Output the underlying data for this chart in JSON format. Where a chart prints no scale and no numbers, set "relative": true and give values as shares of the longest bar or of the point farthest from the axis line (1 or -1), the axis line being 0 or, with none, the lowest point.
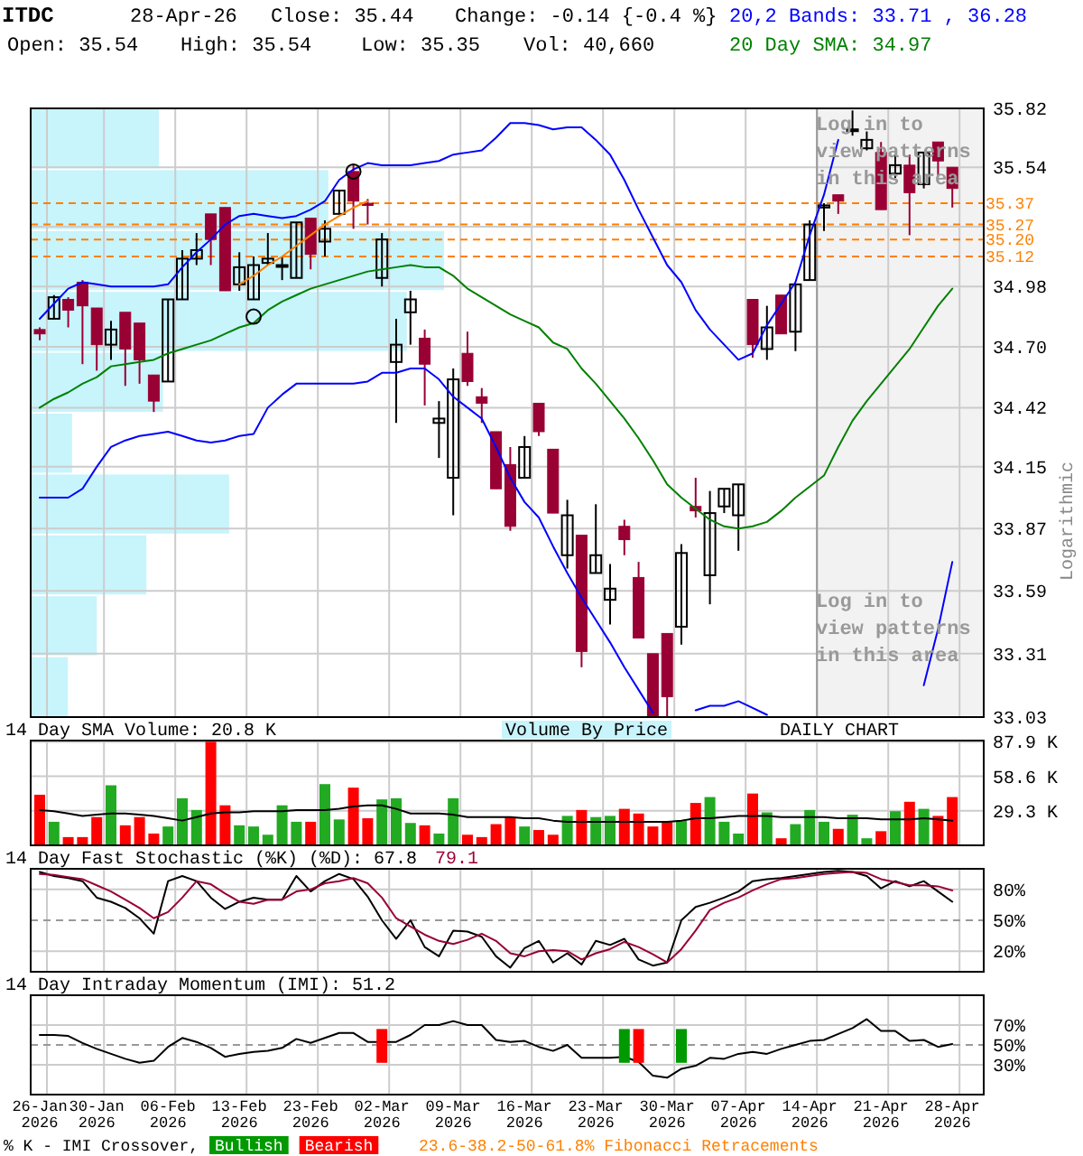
{
  "chart_data": [
    {
      "type": "candlestick",
      "title": "ITDC",
      "ylabel": "Logarithmic",
      "log": true,
      "grid": true,
      "tick_labels": "y",
      "annotations": [
        "28-Apr-26",
        "Close: 35.44",
        "Change: -0.14 {-0.4 %}",
        "Open: 35.54",
        "High: 35.54",
        "Low: 35.35",
        "Vol: 40,660",
        "20,2 Bands: 33.71 , 36.28",
        "20 Day SMA: 34.97",
        "Log in to view patterns in this area",
        "Log in to view patterns in this area",
        "DAILY CHART",
        "Volume By Price"
      ],
      "categories": [
        null,
        null,
        null,
        null,
        null,
        null,
        null,
        null,
        null,
        null,
        null,
        null,
        null,
        null,
        null,
        null,
        null,
        null,
        null,
        null,
        null,
        null,
        null,
        null,
        null,
        null,
        null,
        null,
        null,
        null,
        null,
        null,
        null,
        null,
        null,
        null,
        null,
        null,
        null,
        null,
        null,
        null,
        null,
        null,
        null,
        null,
        null,
        null,
        null,
        null,
        null,
        null,
        null,
        null,
        null,
        null,
        null,
        null,
        null,
        null,
        null,
        null,
        null,
        null,
        null
      ],
      "ylim": [
        33.03,
        35.82
      ],
      "yticks": [
        33.03,
        33.31,
        33.59,
        33.87,
        34.15,
        34.42,
        {
          "value": 34.7,
          "label": "34.70"
        },
        34.98,
        {
          "value": 35.26,
          "label": null
        },
        35.54,
        35.82
      ],
      "ref_lines": [
        {
          "axis": "y",
          "value": 35.37,
          "label": "35.37",
          "color": "#ff8000",
          "line_style": "dashed"
        },
        {
          "axis": "y",
          "value": 35.27,
          "label": "35.27",
          "color": "#ff8000",
          "line_style": "dashed"
        },
        {
          "axis": "y",
          "value": 35.2,
          "label": "35.20",
          "color": "#ff8000",
          "line_style": "dashed"
        },
        {
          "axis": "y",
          "value": 35.12,
          "label": "35.12",
          "color": "#ff8000",
          "line_style": "dashed"
        }
      ],
      "series": [
        {
          "type": "candlestick",
          "colors": [
            "#990033",
            "#000000",
            "#990033",
            "#990033",
            "#990033",
            "#000000",
            "#990033",
            "#990033",
            "#990033",
            "#000000",
            "#000000",
            "#000000",
            "#990033",
            "#990033",
            "#000000",
            "#000000",
            "#000000",
            "#000000",
            "#000000",
            "#990033",
            "#000000",
            "#000000",
            "#990033",
            "#990033",
            "#000000",
            "#000000",
            "#000000",
            "#990033",
            "#000000",
            "#000000",
            "#990033",
            "#990033",
            "#990033",
            "#990033",
            "#000000",
            "#990033",
            "#990033",
            "#000000",
            "#990033",
            "#000000",
            "#000000",
            "#990033",
            "#990033",
            "#990033",
            "#990033",
            "#000000",
            "#990033",
            "#000000",
            "#000000",
            "#000000",
            "#990033",
            "#000000",
            "#990033",
            "#000000",
            "#000000",
            "#000000",
            "#990033",
            "#000000",
            "#000000",
            "#990033",
            "#000000",
            "#990033",
            "#000000",
            "#990033",
            "#990033"
          ],
          "ohlc": [
            [
              34.78,
              34.79,
              34.73,
              34.76
            ],
            [
              34.83,
              34.94,
              34.83,
              34.93
            ],
            [
              34.92,
              34.93,
              34.79,
              34.87
            ],
            [
              35.0,
              35.01,
              34.62,
              34.89
            ],
            [
              34.88,
              34.88,
              34.59,
              34.71
            ],
            [
              34.71,
              34.82,
              34.64,
              34.78
            ],
            [
              34.86,
              34.86,
              34.52,
              34.69
            ],
            [
              34.81,
              34.81,
              34.53,
              34.64
            ],
            [
              34.57,
              34.57,
              34.4,
              34.45
            ],
            [
              34.54,
              34.92,
              34.54,
              34.92
            ],
            [
              34.92,
              35.15,
              34.92,
              35.11
            ],
            [
              35.11,
              35.23,
              35.08,
              35.15
            ],
            [
              35.32,
              35.32,
              35.08,
              35.2
            ],
            [
              35.35,
              35.35,
              34.96,
              34.96
            ],
            [
              34.99,
              35.14,
              34.96,
              35.07
            ],
            [
              34.92,
              35.12,
              34.92,
              35.08
            ],
            [
              35.09,
              35.23,
              35.08,
              35.11
            ],
            [
              35.08,
              35.12,
              35.01,
              35.08
            ],
            [
              35.02,
              35.28,
              35.02,
              35.28
            ],
            [
              35.3,
              35.3,
              35.06,
              35.13
            ],
            [
              35.19,
              35.29,
              35.12,
              35.25
            ],
            [
              35.32,
              35.43,
              35.32,
              35.43
            ],
            [
              35.52,
              35.55,
              35.25,
              35.38
            ],
            [
              35.37,
              35.39,
              35.27,
              35.36
            ],
            [
              35.02,
              35.23,
              34.98,
              35.2
            ],
            [
              34.63,
              34.83,
              34.35,
              34.71
            ],
            [
              34.86,
              34.96,
              34.71,
              34.92
            ],
            [
              34.74,
              34.78,
              34.43,
              34.62
            ],
            [
              34.35,
              34.45,
              34.19,
              34.37
            ],
            [
              34.1,
              34.6,
              33.93,
              34.55
            ],
            [
              34.67,
              34.77,
              34.52,
              34.54
            ],
            [
              34.47,
              34.51,
              34.35,
              34.44
            ],
            [
              34.31,
              34.31,
              34.05,
              34.05
            ],
            [
              34.16,
              34.24,
              33.86,
              33.88
            ],
            [
              34.1,
              34.29,
              34.1,
              34.24
            ],
            [
              34.44,
              34.44,
              34.29,
              34.31
            ],
            [
              34.23,
              34.23,
              33.94,
              33.94
            ],
            [
              33.75,
              34.0,
              33.69,
              33.93
            ],
            [
              33.84,
              33.84,
              33.25,
              33.32
            ],
            [
              33.67,
              33.98,
              33.67,
              33.75
            ],
            [
              33.55,
              33.71,
              33.44,
              33.6
            ],
            [
              33.88,
              33.91,
              33.75,
              33.82
            ],
            [
              33.65,
              33.72,
              33.38,
              33.38
            ],
            [
              33.31,
              33.31,
              33.03,
              33.03
            ],
            [
              33.4,
              33.4,
              33.03,
              33.12
            ],
            [
              33.43,
              33.8,
              33.35,
              33.76
            ],
            [
              33.97,
              34.1,
              33.92,
              33.95
            ],
            [
              33.66,
              34.04,
              33.53,
              33.94
            ],
            [
              33.97,
              34.05,
              33.94,
              34.05
            ],
            [
              33.93,
              34.07,
              33.77,
              34.07
            ],
            [
              34.92,
              34.92,
              34.65,
              34.71
            ],
            [
              34.69,
              34.89,
              34.64,
              34.79
            ],
            [
              34.94,
              34.94,
              34.76,
              34.76
            ],
            [
              34.77,
              34.99,
              34.68,
              34.99
            ],
            [
              35.01,
              35.29,
              35.01,
              35.27
            ],
            [
              35.35,
              35.37,
              35.24,
              35.36
            ],
            [
              35.41,
              35.41,
              35.32,
              35.38
            ],
            [
              35.72,
              35.81,
              35.69,
              35.72
            ],
            [
              35.63,
              35.71,
              35.62,
              35.67
            ],
            [
              35.61,
              35.66,
              35.34,
              35.34
            ],
            [
              35.51,
              35.6,
              35.49,
              35.55
            ],
            [
              35.55,
              35.6,
              35.22,
              35.42
            ],
            [
              35.46,
              35.61,
              35.44,
              35.61
            ],
            [
              35.66,
              35.66,
              35.5,
              35.57
            ],
            [
              35.54,
              35.54,
              35.35,
              35.44
            ]
          ]
        },
        {
          "type": "line",
          "color": "#0000ff",
          "values": [
            34.83,
            34.9,
            34.97,
            35.0,
            34.99,
            34.98,
            34.98,
            34.98,
            34.98,
            34.99,
            35.07,
            35.14,
            35.2,
            35.27,
            35.31,
            35.32,
            35.31,
            35.3,
            35.31,
            35.34,
            35.38,
            35.48,
            35.53,
            35.56,
            35.55,
            35.55,
            35.55,
            35.56,
            35.57,
            35.6,
            35.61,
            35.62,
            35.68,
            35.75,
            35.75,
            35.74,
            35.72,
            35.73,
            35.73,
            35.67,
            35.6,
            35.48,
            35.34,
            35.21,
            35.08,
            35.0,
            34.87,
            34.78,
            34.71,
            34.64,
            34.67,
            34.8,
            34.9,
            35.0,
            35.22,
            35.41,
            35.67,
            null,
            null,
            null,
            null,
            null,
            null,
            null,
            null
          ]
        },
        {
          "type": "line",
          "color": "#0000ff",
          "values": [
            34.01,
            34.01,
            34.01,
            34.05,
            34.15,
            34.24,
            34.27,
            34.29,
            34.3,
            34.31,
            34.29,
            34.27,
            34.26,
            34.27,
            34.29,
            34.3,
            34.42,
            34.48,
            34.53,
            34.53,
            34.53,
            34.53,
            34.53,
            34.54,
            34.58,
            34.58,
            34.6,
            34.6,
            34.55,
            34.47,
            34.42,
            34.37,
            34.24,
            34.1,
            33.99,
            33.92,
            33.79,
            33.67,
            33.56,
            33.46,
            33.36,
            33.25,
            33.15,
            33.05,
            null,
            null,
            33.06,
            33.08,
            33.08,
            33.1,
            33.07,
            33.04,
            null,
            null,
            null,
            null,
            null,
            null,
            null,
            null,
            null,
            null,
            33.17,
            33.42,
            33.72
          ]
        },
        {
          "type": "line",
          "color": "#008000",
          "values": [
            34.42,
            34.46,
            34.49,
            34.53,
            34.56,
            34.61,
            34.62,
            34.63,
            34.64,
            34.67,
            34.69,
            34.71,
            34.73,
            34.76,
            34.79,
            34.81,
            34.87,
            34.91,
            34.94,
            34.97,
            34.99,
            35.01,
            35.03,
            35.05,
            35.06,
            35.07,
            35.08,
            35.07,
            35.07,
            35.03,
            34.97,
            34.93,
            34.89,
            34.85,
            34.82,
            34.79,
            34.72,
            34.69,
            34.6,
            34.53,
            34.45,
            34.37,
            34.28,
            34.18,
            34.07,
            34.01,
            33.96,
            33.91,
            33.88,
            33.87,
            33.88,
            33.9,
            33.95,
            34.01,
            34.06,
            34.11,
            34.24,
            34.36,
            34.45,
            34.53,
            34.61,
            34.69,
            34.79,
            34.89,
            34.97
          ]
        },
        {
          "type": "scatter",
          "marker": "circle",
          "color": "#000000",
          "values": [
            null,
            null,
            null,
            null,
            null,
            null,
            null,
            null,
            null,
            null,
            null,
            null,
            null,
            null,
            null,
            34.84,
            null,
            null,
            null,
            null,
            null,
            null,
            35.52,
            null,
            null,
            null,
            null,
            null,
            null,
            null,
            null,
            null,
            null,
            null,
            null,
            null,
            null,
            null,
            null,
            null,
            null,
            null,
            null,
            null,
            null,
            null,
            null,
            null,
            null,
            null,
            null,
            null,
            null,
            null,
            null,
            null,
            null,
            null,
            null,
            null,
            null,
            null,
            null,
            null,
            null
          ]
        },
        {
          "type": "line",
          "color": "#ff8000",
          "values": [
            null,
            null,
            null,
            null,
            null,
            null,
            null,
            null,
            null,
            null,
            null,
            null,
            null,
            null,
            34.99,
            35.03,
            35.08,
            35.12,
            35.17,
            35.22,
            35.27,
            35.31,
            35.35,
            35.38,
            null,
            null,
            null,
            null,
            null,
            null,
            null,
            null,
            null,
            null,
            null,
            null,
            null,
            null,
            null,
            null,
            null,
            null,
            null,
            null,
            null,
            null,
            null,
            null,
            null,
            null,
            null,
            null,
            null,
            null,
            null,
            null,
            null,
            null,
            null,
            null,
            null,
            null,
            null,
            null,
            null
          ]
        }
      ]
    },
    {
      "type": "bar",
      "orientation": "horizontal",
      "relative": true,
      "color": "#c8f4fc",
      "categories": [
        null,
        null,
        null,
        null,
        null,
        null,
        null,
        null,
        null,
        null
      ],
      "values": [
        0.31,
        0.72,
        1,
        0.91,
        0.32,
        0.1,
        0.48,
        0.28,
        0.16,
        0.09
      ]
    },
    {
      "type": "bar",
      "title": "14 Day SMA Volume: 20.8 K",
      "grid": true,
      "tick_labels": "y",
      "categories": [
        null,
        null,
        null,
        null,
        null,
        null,
        null,
        null,
        null,
        null,
        null,
        null,
        null,
        null,
        null,
        null,
        null,
        null,
        null,
        null,
        null,
        null,
        null,
        null,
        null,
        null,
        null,
        null,
        null,
        null,
        null,
        null,
        null,
        null,
        null,
        null,
        null,
        null,
        null,
        null,
        null,
        null,
        null,
        null,
        null,
        null,
        null,
        null,
        null,
        null,
        null,
        null,
        null,
        null,
        null,
        null,
        null,
        null,
        null,
        null,
        null,
        null,
        null,
        null,
        null
      ],
      "ylim": [
        0,
        89
      ],
      "yticks": [
        {
          "value": 29.3,
          "label": "29.3 K"
        },
        {
          "value": 58.6,
          "label": "58.6 K"
        },
        {
          "value": 87.9,
          "label": "87.9 K"
        }
      ],
      "series": [
        {
          "type": "bar",
          "values": [
            43,
            20,
            7,
            7,
            24,
            51,
            17,
            24,
            10,
            16,
            40,
            30,
            88,
            34,
            17,
            16,
            9,
            34,
            20,
            20,
            52,
            22,
            49,
            23,
            39,
            40,
            19,
            17,
            10,
            40,
            9,
            7,
            18,
            24,
            16,
            13,
            9,
            25,
            30,
            24,
            25,
            31,
            27,
            16,
            20,
            21,
            36,
            41,
            20,
            10,
            44,
            28,
            6,
            18,
            30,
            20,
            14,
            26,
            6,
            12,
            29,
            37,
            31,
            25,
            41
          ],
          "colors": [
            "#ff0000",
            "#22aa22",
            "#ff0000",
            "#ff0000",
            "#ff0000",
            "#22aa22",
            "#ff0000",
            "#ff0000",
            "#ff0000",
            "#22aa22",
            "#22aa22",
            "#22aa22",
            "#ff0000",
            "#ff0000",
            "#22aa22",
            "#22aa22",
            "#22aa22",
            "#22aa22",
            "#22aa22",
            "#ff0000",
            "#22aa22",
            "#22aa22",
            "#ff0000",
            "#ff0000",
            "#22aa22",
            "#22aa22",
            "#22aa22",
            "#ff0000",
            "#22aa22",
            "#22aa22",
            "#ff0000",
            "#ff0000",
            "#ff0000",
            "#ff0000",
            "#22aa22",
            "#ff0000",
            "#ff0000",
            "#22aa22",
            "#ff0000",
            "#22aa22",
            "#22aa22",
            "#ff0000",
            "#ff0000",
            "#ff0000",
            "#ff0000",
            "#22aa22",
            "#ff0000",
            "#22aa22",
            "#22aa22",
            "#22aa22",
            "#ff0000",
            "#22aa22",
            "#ff0000",
            "#22aa22",
            "#22aa22",
            "#22aa22",
            "#ff0000",
            "#22aa22",
            "#22aa22",
            "#ff0000",
            "#22aa22",
            "#ff0000",
            "#22aa22",
            "#ff0000",
            "#ff0000"
          ]
        },
        {
          "type": "line",
          "color": "#000000",
          "values": [
            30,
            29,
            27,
            25,
            26,
            27,
            27,
            26,
            25,
            23,
            21,
            24,
            27,
            28,
            28,
            29,
            29,
            29,
            30,
            30,
            30,
            31,
            33,
            34,
            34,
            31,
            27,
            27,
            27,
            26,
            24,
            24,
            24,
            24,
            23,
            23,
            21,
            20,
            20,
            20,
            20,
            20,
            20,
            20,
            20,
            21,
            23,
            23,
            24,
            25,
            25,
            25,
            24,
            24,
            24,
            24,
            23,
            23,
            23,
            22,
            22,
            22,
            23,
            22,
            21
          ]
        }
      ]
    },
    {
      "type": "line",
      "title": "14 Day Fast Stochastic (%K) (%D): 67.8",
      "annotations": [
        "79.1"
      ],
      "grid": true,
      "tick_labels": "y",
      "categories": [
        null,
        null,
        null,
        null,
        null,
        null,
        null,
        null,
        null,
        null,
        null,
        null,
        null,
        null,
        null,
        null,
        null,
        null,
        null,
        null,
        null,
        null,
        null,
        null,
        null,
        null,
        null,
        null,
        null,
        null,
        null,
        null,
        null,
        null,
        null,
        null,
        null,
        null,
        null,
        null,
        null,
        null,
        null,
        null,
        null,
        null,
        null,
        null,
        null,
        null,
        null,
        null,
        null,
        null,
        null,
        null,
        null,
        null,
        null,
        null,
        null,
        null,
        null,
        null,
        null
      ],
      "ylim": [
        0,
        100
      ],
      "yticks": [
        {
          "value": 20,
          "label": "20%"
        },
        {
          "value": 50,
          "label": "50%"
        },
        {
          "value": 80,
          "label": "80%"
        }
      ],
      "ref_lines": [
        {
          "axis": "y",
          "value": 50,
          "color": "#999999",
          "line_style": "dashed"
        }
      ],
      "series": [
        {
          "color": "#000000",
          "values": [
            97,
            93,
            91,
            88,
            72,
            68,
            62,
            52,
            37,
            88,
            93,
            88,
            72,
            61,
            68,
            72,
            70,
            70,
            93,
            78,
            88,
            95,
            90,
            73,
            50,
            32,
            50,
            24,
            15,
            40,
            39,
            34,
            15,
            4,
            23,
            30,
            9,
            18,
            7,
            30,
            26,
            32,
            12,
            6,
            9,
            50,
            63,
            67,
            72,
            78,
            88,
            90,
            91,
            93,
            95,
            97,
            98,
            97,
            93,
            81,
            88,
            83,
            88,
            78,
            68
          ]
        },
        {
          "color": "#990033",
          "values": [
            95,
            94,
            92,
            90,
            84,
            78,
            70,
            62,
            52,
            58,
            72,
            88,
            85,
            76,
            68,
            66,
            70,
            70,
            78,
            80,
            86,
            88,
            91,
            86,
            72,
            52,
            44,
            36,
            30,
            27,
            31,
            37,
            30,
            18,
            15,
            20,
            21,
            20,
            12,
            18,
            22,
            29,
            24,
            17,
            9,
            22,
            40,
            60,
            67,
            72,
            79,
            85,
            90,
            91,
            93,
            95,
            96,
            97,
            96,
            90,
            87,
            84,
            84,
            83,
            79
          ]
        }
      ]
    },
    {
      "type": "line",
      "title": "14 Day Intraday Momentum (IMI): 51.2",
      "grid": true,
      "legend": "bottom",
      "legend_title": "% K - IMI Crossover,",
      "annotations": [
        "23.6-38.2-50-61.8% Fibonacci Retracements"
      ],
      "categories": [
        "26-Jan 2026",
        null,
        null,
        null,
        "30-Jan 2026",
        null,
        null,
        null,
        null,
        "06-Feb 2026",
        null,
        null,
        null,
        null,
        "13-Feb 2026",
        null,
        null,
        null,
        null,
        "23-Feb 2026",
        null,
        null,
        null,
        null,
        "02-Mar 2026",
        null,
        null,
        null,
        null,
        "09-Mar 2026",
        null,
        null,
        null,
        null,
        "16-Mar 2026",
        null,
        null,
        null,
        null,
        "23-Mar 2026",
        null,
        null,
        null,
        null,
        "30-Mar 2026",
        null,
        null,
        null,
        null,
        "07-Apr 2026",
        null,
        null,
        null,
        null,
        "14-Apr 2026",
        null,
        null,
        null,
        null,
        "21-Apr 2026",
        null,
        null,
        null,
        null,
        "28-Apr 2026"
      ],
      "ylim": [
        0,
        100
      ],
      "yticks": [
        {
          "value": 30,
          "label": "30%"
        },
        {
          "value": 50,
          "label": "50%"
        },
        {
          "value": 70,
          "label": "70%"
        }
      ],
      "ref_lines": [
        {
          "axis": "y",
          "value": 50,
          "color": "#999999",
          "line_style": "dashed"
        }
      ],
      "series": [
        {
          "color": "#000000",
          "values": [
            60,
            60,
            59,
            52,
            46,
            41,
            36,
            32,
            34,
            48,
            57,
            53,
            47,
            38,
            41,
            43,
            44,
            47,
            56,
            52,
            57,
            62,
            62,
            53,
            53,
            53,
            60,
            70,
            70,
            74,
            70,
            70,
            55,
            53,
            54,
            48,
            44,
            50,
            37,
            37,
            37,
            38,
            33,
            19,
            17,
            26,
            29,
            37,
            36,
            41,
            43,
            41,
            46,
            50,
            54,
            55,
            61,
            67,
            76,
            64,
            64,
            54,
            55,
            48,
            51
          ]
        },
        {
          "type": "bar",
          "name": "Bullish",
          "color": "#009900",
          "values": [
            null,
            null,
            null,
            null,
            null,
            null,
            null,
            null,
            null,
            null,
            null,
            null,
            null,
            null,
            null,
            null,
            null,
            null,
            null,
            null,
            null,
            null,
            null,
            null,
            null,
            null,
            null,
            null,
            null,
            null,
            null,
            null,
            null,
            null,
            null,
            null,
            null,
            null,
            null,
            null,
            null,
            34,
            null,
            null,
            null,
            34,
            null,
            null,
            null,
            null,
            null,
            null,
            null,
            null,
            null,
            null,
            null,
            null,
            null,
            null,
            null,
            null,
            null,
            null,
            null
          ],
          "base": [
            null,
            null,
            null,
            null,
            null,
            null,
            null,
            null,
            null,
            null,
            null,
            null,
            null,
            null,
            null,
            null,
            null,
            null,
            null,
            null,
            null,
            null,
            null,
            null,
            null,
            null,
            null,
            null,
            null,
            null,
            null,
            null,
            null,
            null,
            null,
            null,
            null,
            null,
            null,
            null,
            null,
            32,
            null,
            null,
            null,
            32,
            null,
            null,
            null,
            null,
            null,
            null,
            null,
            null,
            null,
            null,
            null,
            null,
            null,
            null,
            null,
            null,
            null,
            null,
            null
          ]
        },
        {
          "type": "bar",
          "name": "Bearish",
          "color": "#ff0000",
          "values": [
            null,
            null,
            null,
            null,
            null,
            null,
            null,
            null,
            null,
            null,
            null,
            null,
            null,
            null,
            null,
            null,
            null,
            null,
            null,
            null,
            null,
            null,
            null,
            null,
            34,
            null,
            null,
            null,
            null,
            null,
            null,
            null,
            null,
            null,
            null,
            null,
            null,
            null,
            null,
            null,
            null,
            null,
            34,
            null,
            null,
            null,
            null,
            null,
            null,
            null,
            null,
            null,
            null,
            null,
            null,
            null,
            null,
            null,
            null,
            null,
            null,
            null,
            null,
            null,
            null
          ],
          "base": [
            null,
            null,
            null,
            null,
            null,
            null,
            null,
            null,
            null,
            null,
            null,
            null,
            null,
            null,
            null,
            null,
            null,
            null,
            null,
            null,
            null,
            null,
            null,
            null,
            32,
            null,
            null,
            null,
            null,
            null,
            null,
            null,
            null,
            null,
            null,
            null,
            null,
            null,
            null,
            null,
            null,
            null,
            32,
            null,
            null,
            null,
            null,
            null,
            null,
            null,
            null,
            null,
            null,
            null,
            null,
            null,
            null,
            null,
            null,
            null,
            null,
            null,
            null,
            null,
            null
          ]
        }
      ]
    }
  ]
}
